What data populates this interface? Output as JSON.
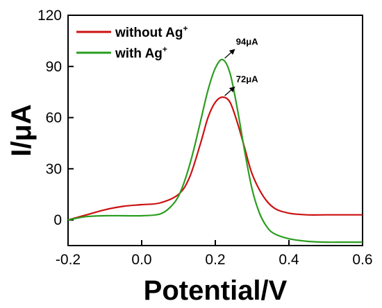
{
  "chart_data": {
    "type": "line",
    "xlabel": "Potential/V",
    "ylabel": "I/μA",
    "xlim": [
      -0.2,
      0.6
    ],
    "ylim": [
      -15,
      120
    ],
    "xticks": [
      -0.2,
      0.0,
      0.2,
      0.4,
      0.6
    ],
    "xtick_labels": [
      "-0.2",
      "0.0",
      "0.2",
      "0.4",
      "0.6"
    ],
    "yticks": [
      0,
      30,
      60,
      90,
      120
    ],
    "ytick_labels": [
      "0",
      "30",
      "60",
      "90",
      "120"
    ],
    "grid": false,
    "legend_position": "top-left",
    "series": [
      {
        "name": "without Ag",
        "name_sup": "+",
        "color": "#cc1111",
        "x": [
          -0.2,
          -0.15,
          -0.1,
          -0.05,
          0.0,
          0.05,
          0.1,
          0.13,
          0.16,
          0.18,
          0.2,
          0.22,
          0.24,
          0.26,
          0.28,
          0.3,
          0.33,
          0.36,
          0.4,
          0.45,
          0.5,
          0.55,
          0.6
        ],
        "y": [
          0,
          3,
          6,
          8,
          9,
          10,
          15,
          25,
          45,
          60,
          69,
          72,
          69,
          57,
          42,
          27,
          14,
          7,
          4,
          3,
          3,
          3,
          3
        ]
      },
      {
        "name": "with Ag",
        "name_sup": "+",
        "color": "#2a9d1f",
        "x": [
          -0.2,
          -0.15,
          -0.1,
          -0.05,
          0.0,
          0.05,
          0.08,
          0.1,
          0.12,
          0.14,
          0.16,
          0.18,
          0.2,
          0.22,
          0.24,
          0.26,
          0.28,
          0.3,
          0.32,
          0.34,
          0.36,
          0.4,
          0.45,
          0.5,
          0.55,
          0.6
        ],
        "y": [
          0,
          2,
          2.5,
          2.5,
          2.5,
          3.5,
          8,
          14,
          25,
          40,
          58,
          76,
          89,
          94,
          86,
          65,
          40,
          18,
          4,
          -4,
          -8,
          -11,
          -12.5,
          -13,
          -13,
          -13
        ]
      }
    ],
    "annotations": [
      {
        "text": "94μA",
        "x": 0.22,
        "y": 94,
        "text_x": 0.26,
        "text_y": 102
      },
      {
        "text": "72μA",
        "x": 0.22,
        "y": 72,
        "text_x": 0.26,
        "text_y": 80
      }
    ]
  }
}
